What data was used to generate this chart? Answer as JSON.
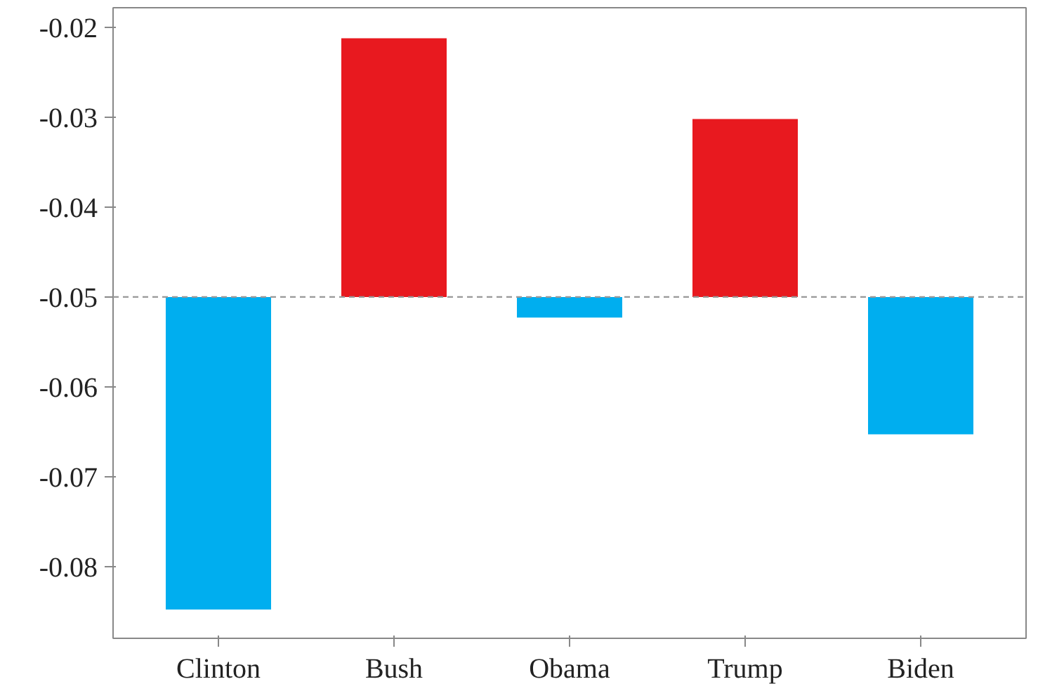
{
  "chart_data": {
    "type": "bar",
    "categories": [
      "Clinton",
      "Bush",
      "Obama",
      "Trump",
      "Biden"
    ],
    "base": [
      -0.05,
      -0.05,
      -0.05,
      -0.05,
      -0.05
    ],
    "values": [
      -0.0348,
      0.0288,
      -0.0023,
      0.0198,
      -0.0153
    ],
    "colors": [
      "#00aeef",
      "#e8191f",
      "#00aeef",
      "#e8191f",
      "#00aeef"
    ],
    "ylim": [
      -0.088,
      -0.0178
    ],
    "yticks": [
      -0.08,
      -0.07,
      -0.06,
      -0.05,
      -0.04,
      -0.03,
      -0.02
    ],
    "ref_lines": [
      {
        "axis": "y",
        "value": -0.05,
        "label": null,
        "color": "#999999",
        "line_style": "dashed"
      }
    ],
    "grid": false
  }
}
